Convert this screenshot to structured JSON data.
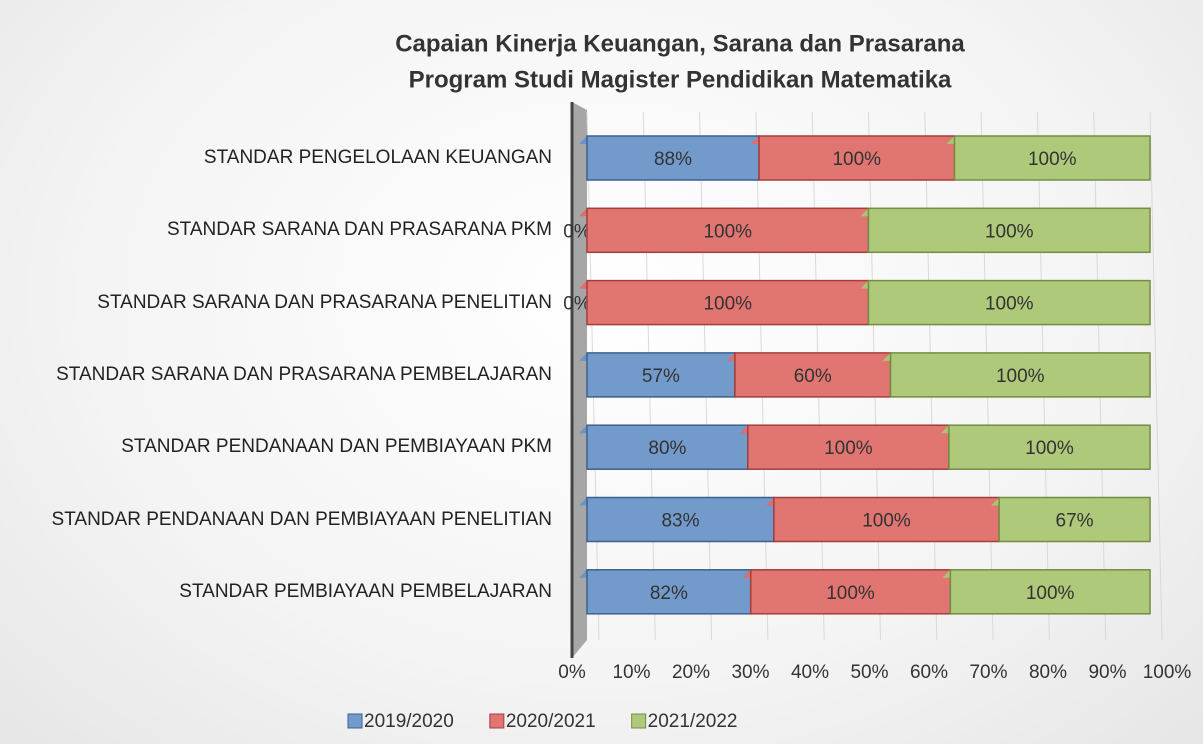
{
  "chart_data": {
    "type": "stacked100",
    "title": [
      "Capaian Kinerja Keuangan, Sarana dan Prasarana",
      "Program Studi Magister Pendidikan Matematika"
    ],
    "categories": [
      "STANDAR PENGELOLAAN KEUANGAN",
      "STANDAR SARANA DAN PRASARANA PKM",
      "STANDAR SARANA DAN PRASARANA PENELITIAN",
      "STANDAR SARANA DAN PRASARANA PEMBELAJARAN",
      "STANDAR PENDANAAN DAN PEMBIAYAAN PKM",
      "STANDAR PENDANAAN DAN PEMBIAYAAN PENELITIAN",
      "STANDAR PEMBIAYAAN PEMBELAJARAN"
    ],
    "series": [
      {
        "name": "2019/2020",
        "color": "#4f81bd",
        "values": [
          88,
          0,
          0,
          57,
          80,
          83,
          82
        ],
        "value_labels": [
          "88%",
          "0%",
          "0%",
          "57%",
          "80%",
          "83%",
          "82%"
        ]
      },
      {
        "name": "2020/2021",
        "color": "#d9534f",
        "values": [
          100,
          100,
          100,
          60,
          100,
          100,
          100
        ],
        "value_labels": [
          "100%",
          "100%",
          "100%",
          "60%",
          "100%",
          "100%",
          "100%"
        ]
      },
      {
        "name": "2021/2022",
        "color": "#9bbb59",
        "values": [
          100,
          100,
          100,
          100,
          100,
          67,
          100
        ],
        "value_labels": [
          "100%",
          "100%",
          "100%",
          "100%",
          "100%",
          "67%",
          "100%"
        ]
      }
    ],
    "xlim": [
      0,
      100
    ],
    "xticks": [
      {
        "value": 0,
        "label": "0%"
      },
      {
        "value": 10,
        "label": "10%"
      },
      {
        "value": 20,
        "label": "20%"
      },
      {
        "value": 30,
        "label": "30%"
      },
      {
        "value": 40,
        "label": "40%"
      },
      {
        "value": 50,
        "label": "50%"
      },
      {
        "value": 60,
        "label": "60%"
      },
      {
        "value": 70,
        "label": "70%"
      },
      {
        "value": 80,
        "label": "80%"
      },
      {
        "value": 90,
        "label": "90%"
      },
      {
        "value": 100,
        "label": "100%"
      }
    ],
    "grid": true,
    "legend": "bottom"
  }
}
